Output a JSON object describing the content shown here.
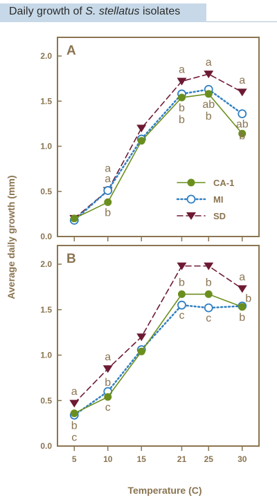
{
  "page": {
    "title_prefix": "Daily growth of ",
    "title_species": "S. stellatus",
    "title_suffix": " isolates"
  },
  "colors": {
    "axis": "#8a7451",
    "text": "#8a7451",
    "CA-1": "#6b8f1e",
    "MI": "#2f7fc1",
    "SD": "#6d1a33"
  },
  "chart_data": [
    {
      "type": "line",
      "panel_label": "A",
      "x": [
        5,
        10,
        15,
        21,
        25,
        30
      ],
      "xlim": [
        2.5,
        32.5
      ],
      "ylim": [
        0,
        2.0
      ],
      "yticks": [
        "0.0",
        "0.5",
        "1.0",
        "1.5",
        "2.0"
      ],
      "xticks": [
        "5",
        "10",
        "15",
        "21",
        "25",
        "30"
      ],
      "ylabel": "Average daily growth (mm)",
      "xlabel": "Temperature (C)",
      "legend_position": "right",
      "series": [
        {
          "name": "CA-1",
          "values": [
            0.2,
            0.38,
            1.06,
            1.54,
            1.58,
            1.14
          ],
          "marker": "filled-circle",
          "line": "solid"
        },
        {
          "name": "MI",
          "values": [
            0.18,
            0.51,
            1.08,
            1.58,
            1.63,
            1.36
          ],
          "marker": "open-circle",
          "line": "dotted"
        },
        {
          "name": "SD",
          "values": [
            0.2,
            0.51,
            1.2,
            1.72,
            1.8,
            1.6
          ],
          "marker": "triangle-down",
          "line": "dashed"
        }
      ],
      "annotations": [
        {
          "x": 10,
          "y": 0.51,
          "lines": [
            "a",
            "a"
          ],
          "position": "above"
        },
        {
          "x": 10,
          "y": 0.38,
          "lines": [
            "b"
          ],
          "position": "below"
        },
        {
          "x": 21,
          "y": 1.72,
          "lines": [
            "a"
          ],
          "position": "above"
        },
        {
          "x": 21,
          "y": 1.54,
          "lines": [
            "b",
            "b"
          ],
          "position": "below"
        },
        {
          "x": 25,
          "y": 1.8,
          "lines": [
            "a"
          ],
          "position": "above"
        },
        {
          "x": 25,
          "y": 1.58,
          "lines": [
            "ab",
            "b"
          ],
          "position": "below"
        },
        {
          "x": 30,
          "y": 1.6,
          "lines": [
            "a"
          ],
          "position": "above"
        },
        {
          "x": 30,
          "y": 1.36,
          "lines": [
            "ab",
            "b"
          ],
          "position": "below"
        }
      ]
    },
    {
      "type": "line",
      "panel_label": "B",
      "x": [
        5,
        10,
        15,
        21,
        25,
        30
      ],
      "xlim": [
        2.5,
        32.5
      ],
      "ylim": [
        0,
        2.0
      ],
      "yticks": [
        "0.0",
        "0.5",
        "1.0",
        "1.5",
        "2.0"
      ],
      "xticks": [
        "5",
        "10",
        "15",
        "21",
        "25",
        "30"
      ],
      "ylabel": "Average daily growth (mm)",
      "xlabel": "Temperature (C)",
      "series": [
        {
          "name": "CA-1",
          "values": [
            0.36,
            0.54,
            1.04,
            1.67,
            1.67,
            1.53
          ],
          "marker": "filled-circle",
          "line": "solid"
        },
        {
          "name": "MI",
          "values": [
            0.34,
            0.6,
            1.06,
            1.55,
            1.52,
            1.54
          ],
          "marker": "open-circle",
          "line": "dotted"
        },
        {
          "name": "SD",
          "values": [
            0.47,
            0.85,
            1.2,
            1.98,
            1.98,
            1.73
          ],
          "marker": "triangle-down",
          "line": "dashed"
        }
      ],
      "annotations": [
        {
          "x": 5,
          "y": 0.47,
          "lines": [
            "a"
          ],
          "position": "above"
        },
        {
          "x": 5,
          "y": 0.34,
          "lines": [
            "b",
            "c"
          ],
          "position": "below"
        },
        {
          "x": 10,
          "y": 0.85,
          "lines": [
            "a"
          ],
          "position": "above"
        },
        {
          "x": 10,
          "y": 0.6,
          "lines": [
            "b"
          ],
          "position": "above-small"
        },
        {
          "x": 10,
          "y": 0.54,
          "lines": [
            "c"
          ],
          "position": "below"
        },
        {
          "x": 21,
          "y": 1.67,
          "lines": [
            "b"
          ],
          "position": "above"
        },
        {
          "x": 21,
          "y": 1.55,
          "lines": [
            "c"
          ],
          "position": "below"
        },
        {
          "x": 25,
          "y": 1.67,
          "lines": [
            "b"
          ],
          "position": "above"
        },
        {
          "x": 25,
          "y": 1.52,
          "lines": [
            "c"
          ],
          "position": "below"
        },
        {
          "x": 30,
          "y": 1.73,
          "lines": [
            "a"
          ],
          "position": "above"
        },
        {
          "x": 30,
          "y": 1.63,
          "lines": [
            "b"
          ],
          "position": "right"
        },
        {
          "x": 30,
          "y": 1.53,
          "lines": [
            "b"
          ],
          "position": "below"
        }
      ]
    }
  ]
}
